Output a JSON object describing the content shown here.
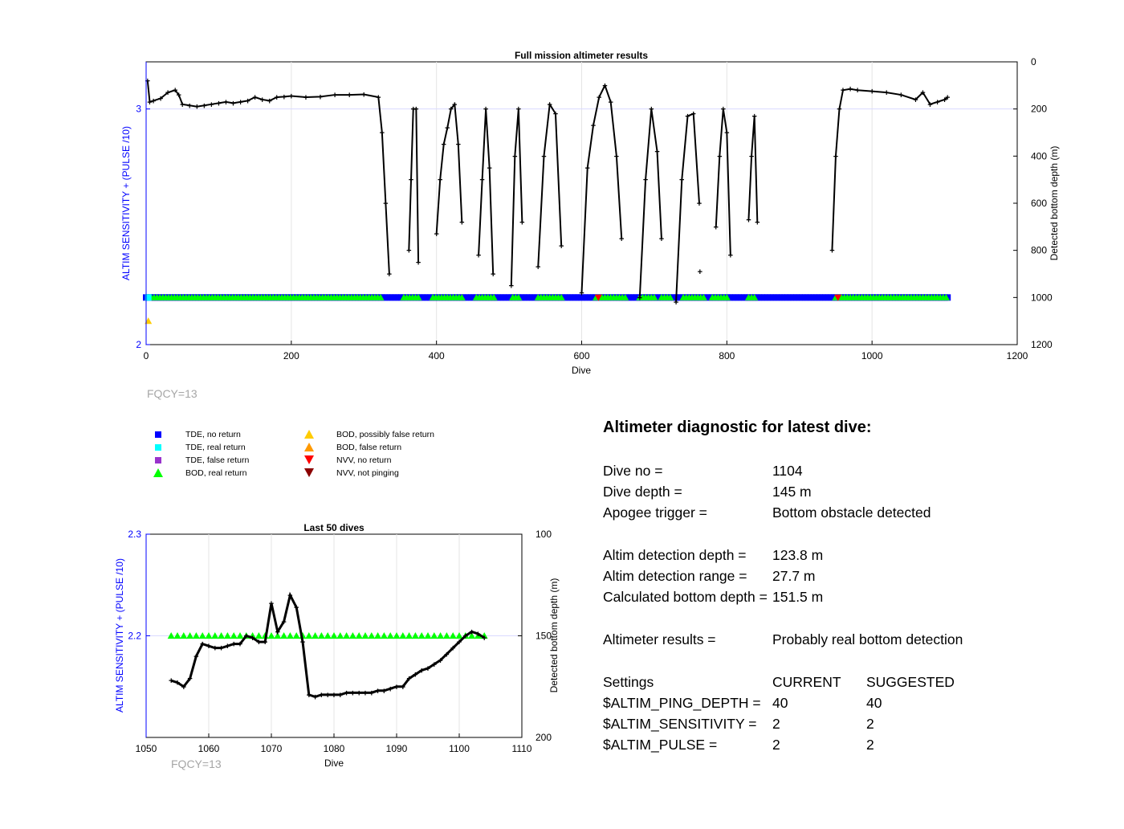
{
  "main_chart": {
    "title": "Full mission altimeter results",
    "xlabel": "Dive",
    "ylabel_left": "ALTIM SENSITIVITY + (PULSE /10)",
    "ylabel_right": "Detected bottom depth (m)",
    "xticks": [
      "0",
      "200",
      "400",
      "600",
      "800",
      "1000",
      "1200"
    ],
    "yticks_left": [
      "2",
      "3"
    ],
    "yticks_right": [
      "0",
      "200",
      "400",
      "600",
      "800",
      "1000",
      "1200"
    ],
    "fqcy_label": "FQCY=13"
  },
  "inset_chart": {
    "title": "Last 50 dives",
    "xlabel": "Dive",
    "ylabel_left": "ALTIM SENSITIVITY + (PULSE /10)",
    "ylabel_right": "Detected bottom depth (m)",
    "xticks": [
      "1050",
      "1060",
      "1070",
      "1080",
      "1090",
      "1100",
      "1110"
    ],
    "yticks_left": [
      "2.2",
      "2.3"
    ],
    "yticks_right": [
      "100",
      "150",
      "200"
    ],
    "fqcy_label": "FQCY=13"
  },
  "legend": {
    "items": [
      {
        "label": "TDE, no return",
        "shape": "square",
        "color": "#0000ff"
      },
      {
        "label": "TDE, real return",
        "shape": "square",
        "color": "#00ffff"
      },
      {
        "label": "TDE, false return",
        "shape": "square",
        "color": "#9933cc"
      },
      {
        "label": "BOD, real return",
        "shape": "triangle-up",
        "color": "#00ff00"
      },
      {
        "label": "BOD, possibly false return",
        "shape": "triangle-up",
        "color": "#ffcc00"
      },
      {
        "label": "BOD, false return",
        "shape": "triangle-up",
        "color": "#ff9900"
      },
      {
        "label": "NVV, no return",
        "shape": "triangle-down",
        "color": "#ff0000"
      },
      {
        "label": "NVV, not pinging",
        "shape": "triangle-down",
        "color": "#8b0000"
      }
    ]
  },
  "diagnostic": {
    "heading": "Altimeter diagnostic for latest dive:",
    "rows": [
      {
        "label": "Dive no =",
        "value": "1104"
      },
      {
        "label": "Dive depth =",
        "value": "145 m"
      },
      {
        "label": "Apogee trigger =",
        "value": "Bottom obstacle detected"
      },
      {
        "label": "Altim detection depth =",
        "value": "123.8 m"
      },
      {
        "label": "Altim detection range =",
        "value": "27.7 m"
      },
      {
        "label": "Calculated bottom depth =",
        "value": "151.5 m"
      },
      {
        "label": "Altimeter results =",
        "value": "Probably real bottom detection"
      }
    ],
    "settings_header": {
      "label": "Settings",
      "current": "CURRENT",
      "suggested": "SUGGESTED"
    },
    "settings": [
      {
        "label": "$ALTIM_PING_DEPTH =",
        "current": "40",
        "suggested": "40"
      },
      {
        "label": "$ALTIM_SENSITIVITY =",
        "current": "2",
        "suggested": "2"
      },
      {
        "label": "$ALTIM_PULSE =",
        "current": "2",
        "suggested": "2"
      }
    ]
  },
  "colors": {
    "left_axis": "#0000ff",
    "bottom_line": "#000000",
    "tde_no_return": "#0000ff",
    "bod_real": "#00ff00",
    "fqcy_text": "#a6a6a6"
  },
  "chart_data": [
    {
      "type": "scatter",
      "title": "Full mission altimeter results",
      "xlabel": "Dive",
      "ylabel": "ALTIM SENSITIVITY + (PULSE /10)",
      "ylabel_right": "Detected bottom depth (m)",
      "xlim": [
        0,
        1200
      ],
      "ylim": [
        2,
        3.2
      ],
      "ylim_right": [
        1200,
        0
      ],
      "grid": true,
      "series": [
        {
          "name": "TDE, no return",
          "x_ranges": [
            [
              0,
              1105
            ]
          ],
          "y": 2.2
        },
        {
          "name": "BOD, real return",
          "x_ranges": [
            [
              3,
              325
            ],
            [
              355,
              375
            ],
            [
              395,
              435
            ],
            [
              455,
              480
            ],
            [
              505,
              515
            ],
            [
              540,
              575
            ],
            [
              620,
              660
            ],
            [
              680,
              700
            ],
            [
              710,
              725
            ],
            [
              740,
              770
            ],
            [
              780,
              800
            ],
            [
              830,
              840
            ],
            [
              950,
              1105
            ]
          ],
          "y": 2.2
        },
        {
          "name": "TDE, real return",
          "x": [
            3
          ],
          "y": [
            2.2
          ]
        },
        {
          "name": "BOD, possibly false return",
          "x": [
            3
          ],
          "y": [
            2.1
          ]
        },
        {
          "name": "NVV, no return",
          "x": [
            623,
            953
          ],
          "y": [
            2.2,
            2.2
          ]
        },
        {
          "name": "Detected bottom depth (m)",
          "axis": "right",
          "segments": [
            {
              "x": [
                2,
                5,
                10,
                20,
                30,
                40,
                45,
                50,
                60,
                70,
                80,
                90,
                100,
                110,
                120,
                130,
                140,
                150,
                160,
                170,
                180,
                190,
                200,
                220,
                240,
                260,
                280,
                300,
                320,
                325,
                330,
                335
              ],
              "y": [
                80,
                170,
                165,
                155,
                130,
                120,
                140,
                180,
                185,
                190,
                185,
                180,
                175,
                170,
                175,
                170,
                165,
                150,
                160,
                165,
                150,
                148,
                145,
                150,
                148,
                140,
                140,
                138,
                150,
                300,
                600,
                900
              ]
            },
            {
              "x": [
                362,
                365,
                368,
                372,
                375
              ],
              "y": [
                800,
                500,
                200,
                200,
                850
              ]
            },
            {
              "x": [
                400,
                405,
                410,
                415,
                420,
                425,
                430,
                435
              ],
              "y": [
                730,
                500,
                350,
                280,
                200,
                180,
                350,
                680
              ]
            },
            {
              "x": [
                458,
                463,
                468,
                473,
                478
              ],
              "y": [
                820,
                500,
                200,
                450,
                900
              ]
            },
            {
              "x": [
                503,
                508,
                513,
                518
              ],
              "y": [
                950,
                400,
                200,
                680
              ]
            },
            {
              "x": [
                540,
                548,
                556,
                564,
                572
              ],
              "y": [
                870,
                400,
                180,
                220,
                780
              ]
            },
            {
              "x": [
                600,
                608,
                616,
                624,
                632,
                640,
                648,
                655
              ],
              "y": [
                980,
                450,
                270,
                150,
                100,
                170,
                400,
                750
              ]
            },
            {
              "x": [
                680,
                688,
                696,
                704,
                710
              ],
              "y": [
                1000,
                500,
                200,
                380,
                750
              ]
            },
            {
              "x": [
                730,
                738,
                746,
                754,
                762
              ],
              "y": [
                1020,
                500,
                230,
                220,
                600
              ]
            },
            {
              "x": [
                785,
                790,
                795,
                800,
                805
              ],
              "y": [
                700,
                400,
                200,
                300,
                820
              ]
            },
            {
              "x": [
                830,
                834,
                838,
                842
              ],
              "y": [
                670,
                400,
                230,
                680
              ]
            },
            {
              "x": [
                945,
                950,
                955,
                960,
                970,
                980,
                1000,
                1020,
                1040,
                1060,
                1070,
                1080,
                1090,
                1100,
                1104
              ],
              "y": [
                800,
                400,
                200,
                120,
                115,
                120,
                125,
                130,
                140,
                160,
                130,
                180,
                170,
                160,
                150
              ]
            }
          ],
          "outliers": {
            "x": [
              763
            ],
            "y": [
              890
            ]
          }
        }
      ]
    },
    {
      "type": "line",
      "title": "Last 50 dives",
      "xlabel": "Dive",
      "ylabel": "ALTIM SENSITIVITY + (PULSE /10)",
      "ylabel_right": "Detected bottom depth (m)",
      "xlim": [
        1050,
        1110
      ],
      "ylim": [
        2.1,
        2.3
      ],
      "ylim_right": [
        200,
        100
      ],
      "grid": true,
      "series": [
        {
          "name": "BOD, real return",
          "x": [
            1054,
            1055,
            1056,
            1057,
            1058,
            1059,
            1060,
            1061,
            1062,
            1063,
            1064,
            1065,
            1066,
            1067,
            1068,
            1069,
            1070,
            1071,
            1072,
            1073,
            1074,
            1075,
            1076,
            1077,
            1078,
            1079,
            1080,
            1081,
            1082,
            1083,
            1084,
            1085,
            1086,
            1087,
            1088,
            1089,
            1090,
            1091,
            1092,
            1093,
            1094,
            1095,
            1096,
            1097,
            1098,
            1099,
            1100,
            1101,
            1102,
            1103,
            1104
          ],
          "y": 2.2
        },
        {
          "name": "Detected bottom depth (m)",
          "axis": "right",
          "x": [
            1054,
            1055,
            1056,
            1057,
            1058,
            1059,
            1060,
            1061,
            1062,
            1063,
            1064,
            1065,
            1066,
            1067,
            1068,
            1069,
            1070,
            1071,
            1072,
            1073,
            1074,
            1075,
            1076,
            1077,
            1078,
            1079,
            1080,
            1081,
            1082,
            1083,
            1084,
            1085,
            1086,
            1087,
            1088,
            1089,
            1090,
            1091,
            1092,
            1093,
            1094,
            1095,
            1096,
            1097,
            1098,
            1099,
            1100,
            1101,
            1102,
            1103,
            1104
          ],
          "y": [
            172,
            173,
            175,
            171,
            160,
            154,
            155,
            156,
            156,
            155,
            154,
            154,
            150,
            151,
            153,
            153,
            134,
            148,
            143,
            130,
            136,
            153,
            179,
            180,
            179,
            179,
            179,
            179,
            178,
            178,
            178,
            178,
            178,
            177,
            177,
            176,
            175,
            175,
            171,
            169,
            167,
            166,
            164,
            162,
            159,
            156,
            153,
            150,
            148,
            149,
            151
          ]
        }
      ]
    }
  ]
}
